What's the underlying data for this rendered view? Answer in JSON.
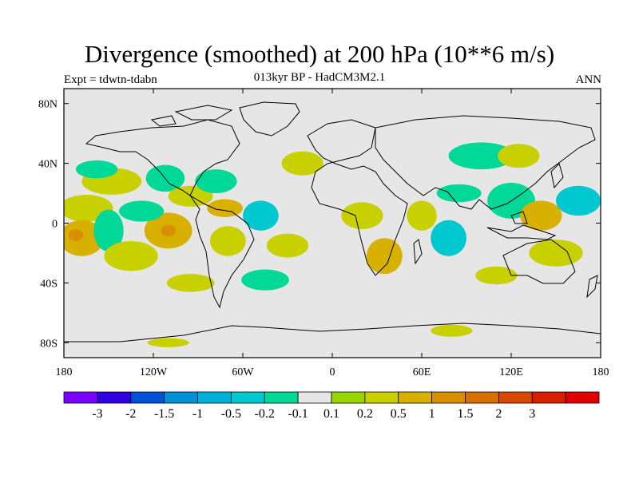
{
  "title": "Divergence (smoothed) at 200 hPa (10**6 m/s)",
  "subtitle": "013kyr BP - HadCM3M2.1",
  "experiment": "Expt = tdwtn-tdabn",
  "season": "ANN",
  "map": {
    "lon_range": [
      -180,
      180
    ],
    "lat_range": [
      -90,
      90
    ],
    "lat_ticks": [
      {
        "value": 80,
        "label": "80N"
      },
      {
        "value": 40,
        "label": "40N"
      },
      {
        "value": 0,
        "label": "0"
      },
      {
        "value": -40,
        "label": "40S"
      },
      {
        "value": -80,
        "label": "80S"
      }
    ],
    "lon_ticks": [
      {
        "value": -180,
        "label": "180"
      },
      {
        "value": -120,
        "label": "120W"
      },
      {
        "value": -60,
        "label": "60W"
      },
      {
        "value": 0,
        "label": "0"
      },
      {
        "value": 60,
        "label": "60E"
      },
      {
        "value": 120,
        "label": "120E"
      },
      {
        "value": 180,
        "label": "180"
      }
    ],
    "background_color": "#e6e6e6",
    "patches": [
      {
        "lon": -165,
        "lat": 10,
        "rx": 18,
        "ry": 9,
        "level": 0.2
      },
      {
        "lon": -168,
        "lat": -10,
        "rx": 15,
        "ry": 12,
        "level": 0.5
      },
      {
        "lon": -172,
        "lat": -8,
        "rx": 5,
        "ry": 4,
        "level": 1
      },
      {
        "lon": -150,
        "lat": -5,
        "rx": 10,
        "ry": 14,
        "level": -0.2
      },
      {
        "lon": -148,
        "lat": 28,
        "rx": 20,
        "ry": 9,
        "level": 0.2
      },
      {
        "lon": -158,
        "lat": 36,
        "rx": 14,
        "ry": 6,
        "level": -0.2
      },
      {
        "lon": -135,
        "lat": -22,
        "rx": 18,
        "ry": 10,
        "level": 0.2
      },
      {
        "lon": -110,
        "lat": -5,
        "rx": 16,
        "ry": 12,
        "level": 0.5
      },
      {
        "lon": -110,
        "lat": -5,
        "rx": 5,
        "ry": 4,
        "level": 1
      },
      {
        "lon": -128,
        "lat": 8,
        "rx": 15,
        "ry": 7,
        "level": -0.2
      },
      {
        "lon": -112,
        "lat": 30,
        "rx": 13,
        "ry": 9,
        "level": -0.2
      },
      {
        "lon": -95,
        "lat": 18,
        "rx": 15,
        "ry": 7,
        "level": 0.2
      },
      {
        "lon": -78,
        "lat": 28,
        "rx": 14,
        "ry": 8,
        "level": -0.2
      },
      {
        "lon": -72,
        "lat": 10,
        "rx": 12,
        "ry": 6,
        "level": 0.5
      },
      {
        "lon": -70,
        "lat": -12,
        "rx": 12,
        "ry": 10,
        "level": 0.2
      },
      {
        "lon": -48,
        "lat": 5,
        "rx": 12,
        "ry": 10,
        "level": -0.5
      },
      {
        "lon": -30,
        "lat": -15,
        "rx": 14,
        "ry": 8,
        "level": 0.2
      },
      {
        "lon": -95,
        "lat": -40,
        "rx": 16,
        "ry": 6,
        "level": 0.2
      },
      {
        "lon": -45,
        "lat": -38,
        "rx": 16,
        "ry": 7,
        "level": -0.2
      },
      {
        "lon": -20,
        "lat": 40,
        "rx": 14,
        "ry": 8,
        "level": 0.2
      },
      {
        "lon": 20,
        "lat": 5,
        "rx": 14,
        "ry": 9,
        "level": 0.2
      },
      {
        "lon": 35,
        "lat": -22,
        "rx": 12,
        "ry": 12,
        "level": 0.5
      },
      {
        "lon": 60,
        "lat": 5,
        "rx": 10,
        "ry": 10,
        "level": 0.2
      },
      {
        "lon": 78,
        "lat": -10,
        "rx": 12,
        "ry": 12,
        "level": -0.5
      },
      {
        "lon": 85,
        "lat": 20,
        "rx": 15,
        "ry": 6,
        "level": -0.2
      },
      {
        "lon": 100,
        "lat": 45,
        "rx": 22,
        "ry": 9,
        "level": -0.2
      },
      {
        "lon": 125,
        "lat": 45,
        "rx": 14,
        "ry": 8,
        "level": 0.2
      },
      {
        "lon": 120,
        "lat": 15,
        "rx": 16,
        "ry": 12,
        "level": -0.2
      },
      {
        "lon": 140,
        "lat": 5,
        "rx": 14,
        "ry": 10,
        "level": 0.5
      },
      {
        "lon": 150,
        "lat": -20,
        "rx": 18,
        "ry": 9,
        "level": 0.2
      },
      {
        "lon": 165,
        "lat": 15,
        "rx": 15,
        "ry": 10,
        "level": -0.5
      },
      {
        "lon": 110,
        "lat": -35,
        "rx": 14,
        "ry": 6,
        "level": 0.2
      },
      {
        "lon": 80,
        "lat": -72,
        "rx": 14,
        "ry": 4,
        "level": 0.2
      },
      {
        "lon": -110,
        "lat": -80,
        "rx": 14,
        "ry": 3,
        "level": 0.2
      }
    ]
  },
  "colorbar": {
    "colors": [
      "#7a00ff",
      "#3200e0",
      "#0050d8",
      "#0090d8",
      "#00b0d8",
      "#00c8d0",
      "#00d898",
      "#e6e6e6",
      "#98d800",
      "#c8d000",
      "#d8b000",
      "#d89000",
      "#d87000",
      "#d84800",
      "#d82000",
      "#e00000"
    ],
    "labels": [
      "-3",
      "-2",
      "-1.5",
      "-1",
      "-0.5",
      "-0.2",
      "-0.1",
      "0.1",
      "0.2",
      "0.5",
      "1",
      "1.5",
      "2",
      "3"
    ]
  }
}
